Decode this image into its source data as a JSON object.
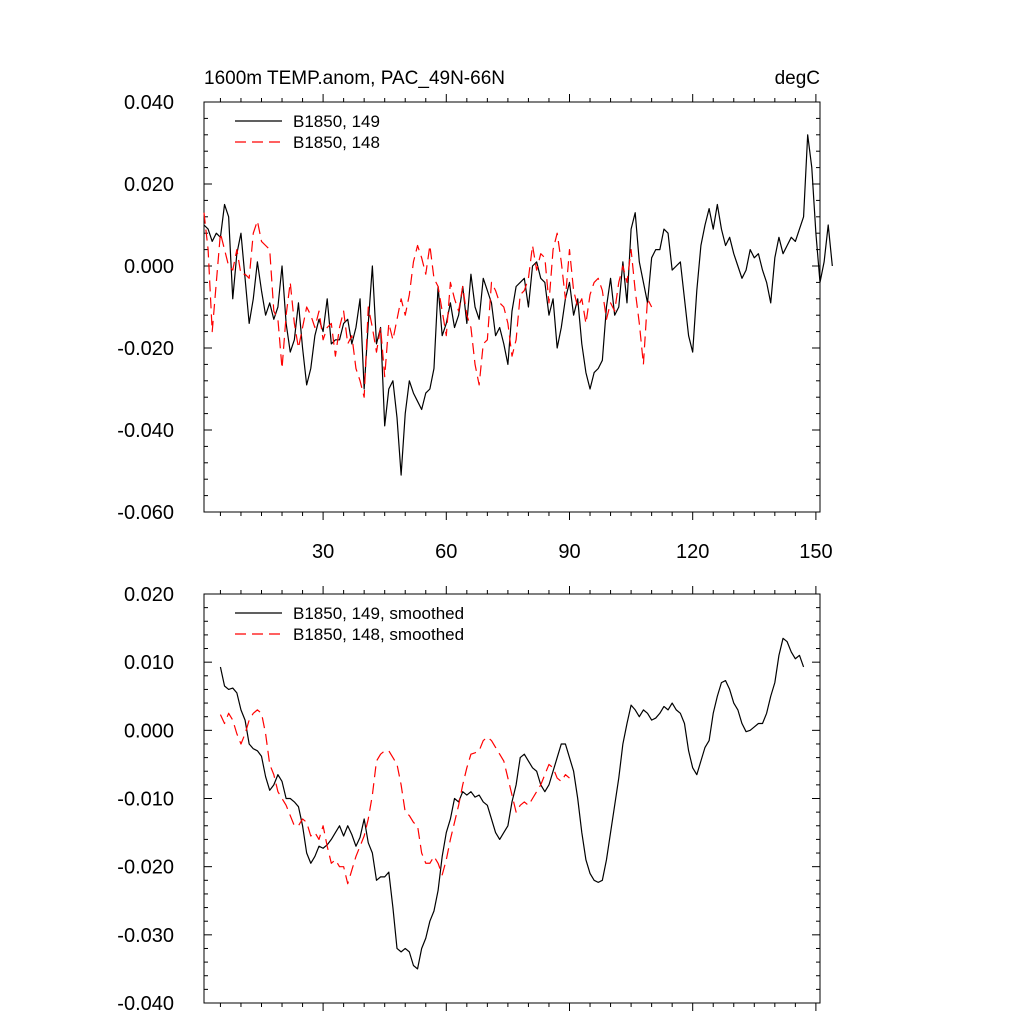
{
  "chart_data": [
    {
      "type": "line",
      "title": "1600m TEMP.anom, PAC_49N-66N",
      "units": "degC",
      "xlabel": "",
      "ylabel": "",
      "xlim": [
        1,
        151
      ],
      "ylim": [
        -0.06,
        0.04
      ],
      "xticks": [
        30,
        60,
        90,
        120,
        150
      ],
      "yticks": [
        -0.06,
        -0.04,
        -0.02,
        0.0,
        0.02,
        0.04
      ],
      "ytick_labels": [
        "-0.060",
        "-0.040",
        "-0.020",
        "0.000",
        "0.020",
        "0.040"
      ],
      "show_xtick_labels": true,
      "grid": false,
      "legend_position": "top-left",
      "series": [
        {
          "name": "B1850, 149",
          "color": "#000000",
          "dash": "solid",
          "x0": 1,
          "values": [
            0.01,
            0.009,
            0.006,
            0.008,
            0.007,
            0.015,
            0.012,
            -0.008,
            0.003,
            0.008,
            -0.003,
            -0.014,
            -0.008,
            0.001,
            -0.006,
            -0.012,
            -0.009,
            -0.013,
            -0.01,
            0.0,
            -0.014,
            -0.021,
            -0.018,
            -0.009,
            -0.02,
            -0.029,
            -0.025,
            -0.017,
            -0.013,
            -0.016,
            -0.008,
            -0.019,
            -0.018,
            -0.018,
            -0.014,
            -0.013,
            -0.019,
            -0.015,
            -0.008,
            -0.03,
            -0.014,
            0.0,
            -0.019,
            -0.015,
            -0.039,
            -0.03,
            -0.028,
            -0.037,
            -0.051,
            -0.036,
            -0.028,
            -0.031,
            -0.033,
            -0.035,
            -0.031,
            -0.03,
            -0.025,
            -0.005,
            -0.017,
            -0.014,
            -0.009,
            -0.015,
            -0.012,
            -0.005,
            -0.014,
            -0.002,
            -0.01,
            -0.013,
            -0.003,
            -0.006,
            -0.009,
            -0.017,
            -0.015,
            -0.019,
            -0.024,
            -0.011,
            -0.005,
            -0.004,
            -0.003,
            -0.01,
            0.0,
            0.001,
            -0.003,
            -0.004,
            -0.012,
            -0.008,
            -0.02,
            -0.015,
            -0.008,
            -0.004,
            -0.012,
            -0.008,
            -0.019,
            -0.026,
            -0.03,
            -0.026,
            -0.025,
            -0.023,
            -0.01,
            -0.003,
            -0.012,
            -0.01,
            0.001,
            -0.009,
            0.009,
            0.013,
            0.001,
            -0.004,
            -0.009,
            0.002,
            0.004,
            0.004,
            0.009,
            0.008,
            -0.001,
            0.0,
            0.001,
            -0.008,
            -0.017,
            -0.021,
            -0.006,
            0.005,
            0.01,
            0.014,
            0.009,
            0.015,
            0.009,
            0.005,
            0.007,
            0.003,
            0.0,
            -0.003,
            -0.001,
            0.004,
            0.002,
            0.003,
            -0.001,
            -0.004,
            -0.009,
            0.002,
            0.007,
            0.003,
            0.005,
            0.007,
            0.006,
            0.009,
            0.012,
            0.032,
            0.024,
            0.008,
            -0.004,
            0.001,
            0.01,
            0.0
          ]
        },
        {
          "name": "B1850, 148",
          "color": "#ff0000",
          "dash": "dashed",
          "x0": 1,
          "values": [
            0.013,
            0.004,
            -0.016,
            -0.004,
            0.008,
            0.004,
            0.0,
            -0.001,
            0.004,
            -0.002,
            -0.002,
            -0.003,
            0.008,
            0.011,
            0.006,
            0.005,
            0.004,
            -0.011,
            -0.013,
            -0.025,
            -0.012,
            -0.004,
            -0.014,
            -0.02,
            -0.015,
            -0.01,
            -0.012,
            -0.015,
            -0.011,
            -0.018,
            -0.015,
            -0.014,
            -0.022,
            -0.015,
            -0.011,
            -0.019,
            -0.017,
            -0.025,
            -0.028,
            -0.032,
            -0.01,
            -0.015,
            -0.021,
            -0.015,
            -0.027,
            -0.014,
            -0.018,
            -0.013,
            -0.008,
            -0.012,
            -0.007,
            0.001,
            0.005,
            0.002,
            -0.002,
            0.005,
            -0.003,
            -0.005,
            -0.011,
            -0.017,
            -0.004,
            -0.008,
            -0.011,
            -0.005,
            -0.012,
            -0.015,
            -0.024,
            -0.029,
            -0.019,
            -0.018,
            -0.004,
            -0.006,
            -0.009,
            -0.01,
            -0.014,
            -0.022,
            -0.018,
            -0.007,
            -0.006,
            -0.003,
            0.005,
            -0.001,
            0.003,
            0.002,
            -0.009,
            0.004,
            0.008,
            0.001,
            -0.008,
            0.004,
            -0.006,
            -0.01,
            -0.008,
            -0.014,
            -0.007,
            -0.004,
            -0.003,
            -0.006,
            -0.013,
            -0.009,
            -0.011,
            -0.004,
            0.0,
            -0.004,
            0.004,
            -0.006,
            -0.014,
            -0.024,
            -0.008,
            -0.01
          ]
        }
      ]
    },
    {
      "type": "line",
      "title": "",
      "xlabel": "",
      "ylabel": "",
      "xlim": [
        1,
        151
      ],
      "ylim": [
        -0.04,
        0.02
      ],
      "xticks": [
        30,
        60,
        90,
        120,
        150
      ],
      "yticks": [
        -0.04,
        -0.03,
        -0.02,
        -0.01,
        0.0,
        0.01,
        0.02
      ],
      "ytick_labels": [
        "-0.040",
        "-0.030",
        "-0.020",
        "-0.010",
        "0.000",
        "0.010",
        "0.020"
      ],
      "show_xtick_labels": false,
      "grid": false,
      "legend_position": "top-left",
      "series": [
        {
          "name": "B1850, 149, smoothed",
          "color": "#000000",
          "dash": "solid",
          "x0": 5,
          "values": [
            0.0093,
            0.0065,
            0.006,
            0.0062,
            0.0055,
            0.003,
            0.0015,
            -0.002,
            -0.0027,
            -0.003,
            -0.0038,
            -0.0068,
            -0.0088,
            -0.008,
            -0.0065,
            -0.0075,
            -0.01,
            -0.01,
            -0.0105,
            -0.0112,
            -0.014,
            -0.018,
            -0.0195,
            -0.0185,
            -0.017,
            -0.0173,
            -0.0168,
            -0.016,
            -0.015,
            -0.014,
            -0.0155,
            -0.014,
            -0.0153,
            -0.017,
            -0.0157,
            -0.013,
            -0.0165,
            -0.018,
            -0.022,
            -0.0215,
            -0.0215,
            -0.0208,
            -0.026,
            -0.032,
            -0.0325,
            -0.032,
            -0.0325,
            -0.0345,
            -0.035,
            -0.032,
            -0.0305,
            -0.028,
            -0.0265,
            -0.0235,
            -0.0185,
            -0.015,
            -0.013,
            -0.01,
            -0.0105,
            -0.009,
            -0.0095,
            -0.009,
            -0.0098,
            -0.0095,
            -0.0105,
            -0.011,
            -0.013,
            -0.015,
            -0.016,
            -0.015,
            -0.014,
            -0.0105,
            -0.008,
            -0.004,
            -0.0035,
            -0.0045,
            -0.0055,
            -0.006,
            -0.008,
            -0.009,
            -0.008,
            -0.006,
            -0.004,
            -0.002,
            -0.002,
            -0.004,
            -0.006,
            -0.01,
            -0.015,
            -0.019,
            -0.021,
            -0.022,
            -0.0223,
            -0.022,
            -0.019,
            -0.015,
            -0.011,
            -0.007,
            -0.002,
            0.001,
            0.0037,
            0.003,
            0.002,
            0.003,
            0.0025,
            0.0015,
            0.0018,
            0.0025,
            0.0035,
            0.003,
            0.004,
            0.003,
            0.0025,
            0.001,
            -0.003,
            -0.0055,
            -0.0065,
            -0.0045,
            -0.0025,
            -0.0015,
            0.0025,
            0.005,
            0.007,
            0.0073,
            0.006,
            0.004,
            0.003,
            0.001,
            -0.0002,
            0.0,
            0.0005,
            0.001,
            0.001,
            0.0025,
            0.005,
            0.007,
            0.011,
            0.0135,
            0.013,
            0.0115,
            0.0105,
            0.011,
            0.0093
          ]
        },
        {
          "name": "B1850, 148, smoothed",
          "color": "#ff0000",
          "dash": "dashed",
          "x0": 5,
          "values": [
            0.0023,
            0.001,
            0.0025,
            0.0015,
            -0.0005,
            -0.002,
            -0.0005,
            0.0015,
            0.0025,
            0.003,
            0.0025,
            -0.0005,
            -0.005,
            -0.0065,
            -0.009,
            -0.01,
            -0.011,
            -0.0125,
            -0.014,
            -0.014,
            -0.013,
            -0.0135,
            -0.0155,
            -0.015,
            -0.016,
            -0.014,
            -0.017,
            -0.0195,
            -0.019,
            -0.02,
            -0.02,
            -0.0225,
            -0.0205,
            -0.0185,
            -0.017,
            -0.0155,
            -0.013,
            -0.0095,
            -0.0045,
            -0.0035,
            -0.003,
            -0.003,
            -0.004,
            -0.005,
            -0.008,
            -0.012,
            -0.0125,
            -0.0135,
            -0.014,
            -0.018,
            -0.0195,
            -0.0195,
            -0.0185,
            -0.0195,
            -0.0212,
            -0.019,
            -0.016,
            -0.0135,
            -0.011,
            -0.008,
            -0.0055,
            -0.0035,
            -0.0033,
            -0.003,
            -0.0015,
            -0.001,
            -0.0015,
            -0.0025,
            -0.0035,
            -0.0045,
            -0.007,
            -0.0095,
            -0.012,
            -0.011,
            -0.0105,
            -0.011,
            -0.01,
            -0.009,
            -0.008,
            -0.0065,
            -0.005,
            -0.0055,
            -0.007,
            -0.0075,
            -0.0065,
            -0.007
          ]
        }
      ]
    }
  ]
}
